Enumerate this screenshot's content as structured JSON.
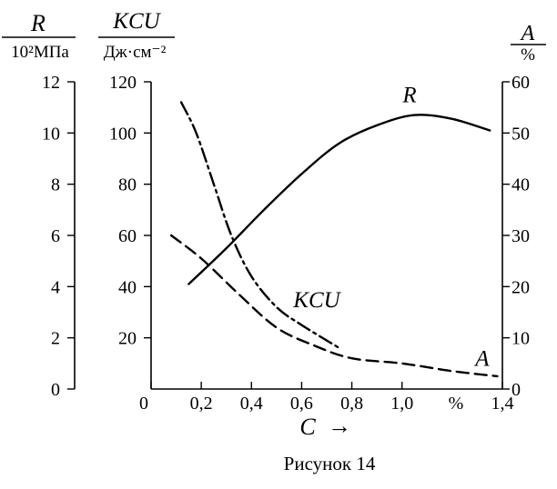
{
  "caption": "Рисунок 14",
  "chart_data": {
    "type": "line",
    "x_axis": {
      "label": "C",
      "arrow": "→",
      "unit_tick": "%",
      "range": [
        0,
        1.4
      ],
      "ticks": [
        {
          "value": 0,
          "label": "0"
        },
        {
          "value": 0.2,
          "label": "0,2"
        },
        {
          "value": 0.4,
          "label": "0,4"
        },
        {
          "value": 0.6,
          "label": "0,6"
        },
        {
          "value": 0.8,
          "label": "0,8"
        },
        {
          "value": 1.0,
          "label": "1,0"
        },
        {
          "value": 1.4,
          "label": "1,4"
        }
      ]
    },
    "y_axes": {
      "R": {
        "title": "R",
        "unit": "10²МПа",
        "range": [
          0,
          12
        ],
        "ticks": [
          {
            "value": 0,
            "label": "0"
          },
          {
            "value": 2,
            "label": "2"
          },
          {
            "value": 4,
            "label": "4"
          },
          {
            "value": 6,
            "label": "6"
          },
          {
            "value": 8,
            "label": "8"
          },
          {
            "value": 10,
            "label": "10"
          },
          {
            "value": 12,
            "label": "12"
          }
        ]
      },
      "KCU": {
        "title": "KCU",
        "unit": "Дж·см⁻²",
        "range": [
          0,
          120
        ],
        "ticks": [
          {
            "value": 20,
            "label": "20"
          },
          {
            "value": 40,
            "label": "40"
          },
          {
            "value": 60,
            "label": "60"
          },
          {
            "value": 80,
            "label": "80"
          },
          {
            "value": 100,
            "label": "100"
          },
          {
            "value": 120,
            "label": "120"
          }
        ]
      },
      "A": {
        "title": "A",
        "unit": "%",
        "range": [
          0,
          60
        ],
        "ticks": [
          {
            "value": 0,
            "label": "0"
          },
          {
            "value": 10,
            "label": "10"
          },
          {
            "value": 20,
            "label": "20"
          },
          {
            "value": 30,
            "label": "30"
          },
          {
            "value": 40,
            "label": "40"
          },
          {
            "value": 50,
            "label": "50"
          },
          {
            "value": 60,
            "label": "60"
          }
        ]
      }
    },
    "series": [
      {
        "name": "R",
        "axis": "R",
        "line_style": "solid",
        "points": [
          [
            0.15,
            4.1
          ],
          [
            0.3,
            5.5
          ],
          [
            0.45,
            7.0
          ],
          [
            0.6,
            8.4
          ],
          [
            0.75,
            9.6
          ],
          [
            0.9,
            10.3
          ],
          [
            1.05,
            10.7
          ],
          [
            1.2,
            10.55
          ],
          [
            1.35,
            10.1
          ]
        ]
      },
      {
        "name": "KCU",
        "axis": "KCU",
        "line_style": "dash-dot",
        "points": [
          [
            0.12,
            112
          ],
          [
            0.18,
            100
          ],
          [
            0.25,
            80
          ],
          [
            0.32,
            60
          ],
          [
            0.4,
            44
          ],
          [
            0.5,
            32
          ],
          [
            0.6,
            25
          ],
          [
            0.75,
            16
          ]
        ]
      },
      {
        "name": "A",
        "axis": "A",
        "line_style": "dashed",
        "points": [
          [
            0.08,
            30
          ],
          [
            0.2,
            25.5
          ],
          [
            0.35,
            18.5
          ],
          [
            0.5,
            12
          ],
          [
            0.65,
            8.5
          ],
          [
            0.8,
            6
          ],
          [
            1.0,
            5
          ],
          [
            1.2,
            3.5
          ],
          [
            1.38,
            2.5
          ]
        ]
      }
    ],
    "annotations": [
      {
        "series": "R",
        "text": "R",
        "at": [
          1.03,
          11.2
        ]
      },
      {
        "series": "KCU",
        "text": "KCU",
        "at": [
          0.66,
          32
        ]
      },
      {
        "series": "A",
        "text": "A",
        "at": [
          1.32,
          4.5
        ]
      }
    ]
  }
}
